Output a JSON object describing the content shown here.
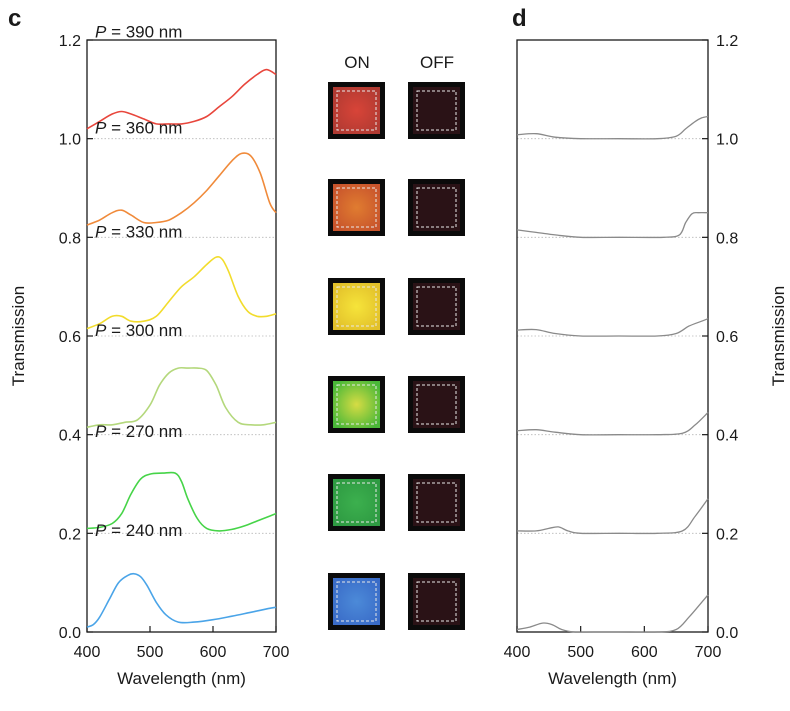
{
  "panels": {
    "c": {
      "label": "c"
    },
    "d": {
      "label": "d"
    }
  },
  "swatch_headers": {
    "on": "ON",
    "off": "OFF"
  },
  "colors": {
    "axis": "#1a1a1a",
    "baseline": "#b8b8b8",
    "gray_curve": "#8a8a8a",
    "swatch_frame": "#0b0b0b",
    "off_fill": "#2a1216",
    "dash": "#e8e8e8"
  },
  "chart_data": [
    {
      "panel": "c",
      "type": "line",
      "xlabel": "Wavelength (nm)",
      "ylabel": "Transmission",
      "xlim": [
        400,
        700
      ],
      "ylim": [
        0,
        1.2
      ],
      "xticks": [
        400,
        500,
        600,
        700
      ],
      "yticks": [
        0.0,
        0.2,
        0.4,
        0.6,
        0.8,
        1.0,
        1.2
      ],
      "ytick_labels": [
        "0.0",
        "0.2",
        "0.4",
        "0.6",
        "0.8",
        "1.0",
        "1.2"
      ],
      "xtick_labels": [
        "400",
        "500",
        "600",
        "700"
      ],
      "dotted_baselines": [
        0.2,
        0.4,
        0.6,
        0.8,
        1.0
      ],
      "series": [
        {
          "name": "P = 390 nm",
          "label_var": "P",
          "label_rest": " = 390 nm",
          "color": "#e8463c",
          "x": [
            400,
            420,
            440,
            455,
            470,
            490,
            510,
            530,
            550,
            570,
            590,
            610,
            630,
            650,
            670,
            685,
            700
          ],
          "y": [
            1.02,
            1.035,
            1.05,
            1.055,
            1.05,
            1.04,
            1.03,
            1.03,
            1.03,
            1.035,
            1.045,
            1.065,
            1.085,
            1.11,
            1.13,
            1.14,
            1.13
          ]
        },
        {
          "name": "P = 360 nm",
          "label_var": "P",
          "label_rest": " = 360 nm",
          "color": "#f08a3a",
          "x": [
            400,
            420,
            440,
            455,
            470,
            490,
            510,
            530,
            550,
            570,
            590,
            610,
            630,
            645,
            660,
            675,
            690,
            700
          ],
          "y": [
            0.825,
            0.835,
            0.85,
            0.855,
            0.845,
            0.83,
            0.83,
            0.835,
            0.85,
            0.87,
            0.895,
            0.925,
            0.955,
            0.97,
            0.965,
            0.93,
            0.87,
            0.85
          ]
        },
        {
          "name": "P = 330 nm",
          "label_var": "P",
          "label_rest": " = 330 nm",
          "color": "#f2dc2c",
          "x": [
            400,
            420,
            440,
            455,
            470,
            490,
            510,
            530,
            550,
            570,
            590,
            605,
            615,
            625,
            640,
            655,
            670,
            685,
            700
          ],
          "y": [
            0.615,
            0.625,
            0.64,
            0.64,
            0.63,
            0.63,
            0.64,
            0.67,
            0.7,
            0.72,
            0.745,
            0.76,
            0.755,
            0.73,
            0.68,
            0.65,
            0.64,
            0.64,
            0.645
          ]
        },
        {
          "name": "P = 300 nm",
          "label_var": "P",
          "label_rest": " = 300 nm",
          "color": "#b4d87c",
          "x": [
            400,
            420,
            440,
            460,
            480,
            500,
            515,
            530,
            545,
            560,
            575,
            590,
            605,
            620,
            640,
            660,
            680,
            700
          ],
          "y": [
            0.415,
            0.42,
            0.42,
            0.425,
            0.43,
            0.46,
            0.5,
            0.525,
            0.535,
            0.535,
            0.535,
            0.53,
            0.5,
            0.455,
            0.425,
            0.42,
            0.42,
            0.425
          ]
        },
        {
          "name": "P = 270 nm",
          "label_var": "P",
          "label_rest": " = 270 nm",
          "color": "#46d448",
          "x": [
            400,
            420,
            440,
            455,
            470,
            485,
            500,
            520,
            540,
            550,
            560,
            575,
            590,
            610,
            630,
            650,
            670,
            690,
            700
          ],
          "y": [
            0.21,
            0.212,
            0.22,
            0.24,
            0.28,
            0.31,
            0.32,
            0.322,
            0.322,
            0.305,
            0.27,
            0.23,
            0.21,
            0.205,
            0.208,
            0.215,
            0.225,
            0.235,
            0.24
          ]
        },
        {
          "name": "P = 240 nm",
          "label_var": "P",
          "label_rest": " = 240 nm",
          "color": "#4aa4e8",
          "x": [
            400,
            410,
            420,
            435,
            450,
            465,
            475,
            485,
            495,
            510,
            525,
            545,
            570,
            600,
            630,
            660,
            690,
            700
          ],
          "y": [
            0.01,
            0.015,
            0.03,
            0.065,
            0.1,
            0.115,
            0.118,
            0.112,
            0.095,
            0.06,
            0.035,
            0.02,
            0.02,
            0.025,
            0.032,
            0.04,
            0.048,
            0.05
          ]
        }
      ]
    },
    {
      "panel": "d",
      "type": "line",
      "xlabel": "Wavelength (nm)",
      "ylabel": "Transmission",
      "xlim": [
        400,
        700
      ],
      "ylim": [
        0,
        1.2
      ],
      "xticks": [
        400,
        500,
        600,
        700
      ],
      "yticks": [
        0.0,
        0.2,
        0.4,
        0.6,
        0.8,
        1.0,
        1.2
      ],
      "ytick_labels": [
        "0.0",
        "0.2",
        "0.4",
        "0.6",
        "0.8",
        "1.0",
        "1.2"
      ],
      "xtick_labels": [
        "400",
        "500",
        "600",
        "700"
      ],
      "dotted_baselines": [
        0.2,
        0.4,
        0.6,
        0.8,
        1.0
      ],
      "series": [
        {
          "x": [
            400,
            430,
            460,
            500,
            560,
            620,
            650,
            665,
            680,
            690,
            700
          ],
          "y": [
            1.008,
            1.01,
            1.003,
            1.0,
            1.0,
            1.0,
            1.005,
            1.02,
            1.035,
            1.042,
            1.045
          ]
        },
        {
          "x": [
            400,
            430,
            460,
            500,
            560,
            630,
            655,
            665,
            675,
            685,
            700
          ],
          "y": [
            0.815,
            0.81,
            0.805,
            0.8,
            0.8,
            0.8,
            0.805,
            0.83,
            0.848,
            0.85,
            0.85
          ]
        },
        {
          "x": [
            400,
            430,
            460,
            500,
            560,
            620,
            650,
            670,
            690,
            700
          ],
          "y": [
            0.612,
            0.613,
            0.605,
            0.6,
            0.6,
            0.6,
            0.605,
            0.62,
            0.63,
            0.635
          ]
        },
        {
          "x": [
            400,
            430,
            460,
            500,
            560,
            620,
            660,
            680,
            700
          ],
          "y": [
            0.408,
            0.41,
            0.405,
            0.4,
            0.4,
            0.4,
            0.403,
            0.42,
            0.445
          ]
        },
        {
          "x": [
            400,
            430,
            450,
            465,
            480,
            500,
            560,
            620,
            660,
            680,
            700
          ],
          "y": [
            0.205,
            0.205,
            0.21,
            0.213,
            0.205,
            0.2,
            0.2,
            0.2,
            0.205,
            0.235,
            0.27
          ]
        },
        {
          "x": [
            400,
            420,
            440,
            455,
            470,
            490,
            520,
            560,
            620,
            650,
            670,
            690,
            700
          ],
          "y": [
            0.005,
            0.01,
            0.018,
            0.015,
            0.005,
            0.0,
            0.0,
            0.0,
            0.0,
            0.005,
            0.03,
            0.06,
            0.075
          ]
        }
      ]
    }
  ],
  "swatches": [
    {
      "on_inner": "#d84438",
      "on_outer": "#b03a32"
    },
    {
      "on_inner": "#e07c30",
      "on_outer": "#c8542c"
    },
    {
      "on_inner": "#f6e43a",
      "on_outer": "#e2c02a"
    },
    {
      "on_inner": "#d6dc44",
      "on_outer": "#4ab838"
    },
    {
      "on_inner": "#3cb04e",
      "on_outer": "#2e9a42"
    },
    {
      "on_inner": "#4c8ad8",
      "on_outer": "#3a6cc8"
    }
  ]
}
